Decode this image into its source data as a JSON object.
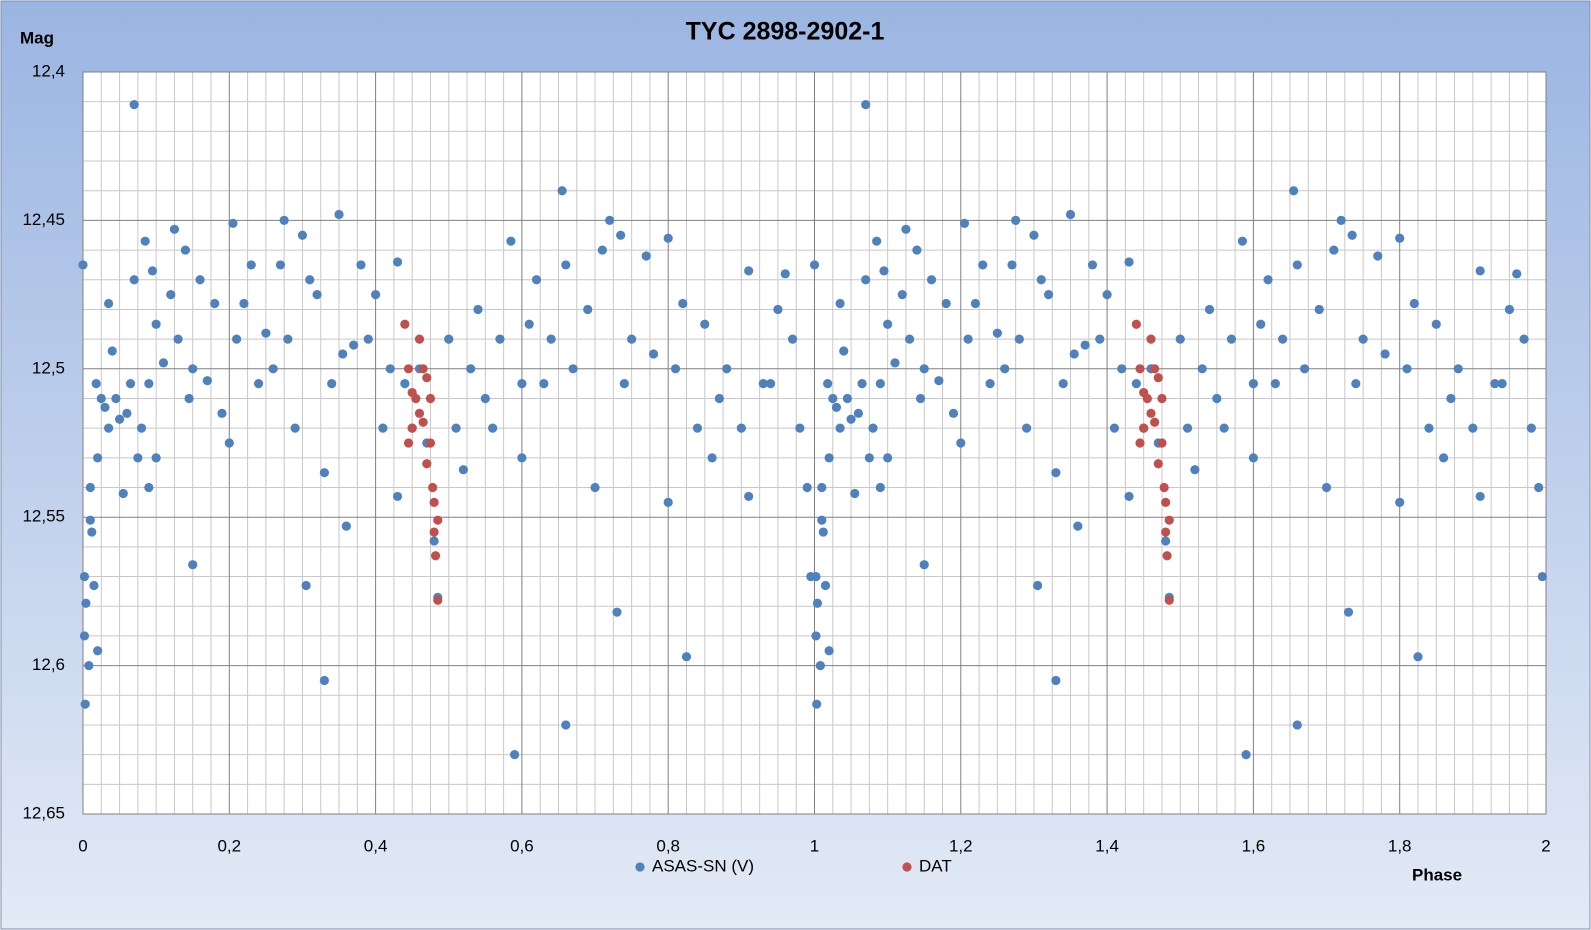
{
  "chart_data": {
    "type": "scatter",
    "title": "TYC 2898-2902-1",
    "y_label": "Mag",
    "x_label": "Phase",
    "xlim": [
      0,
      2
    ],
    "xticks": [
      0,
      {
        "value": 0.2,
        "label": "0,2"
      },
      {
        "value": 0.4,
        "label": "0,4"
      },
      {
        "value": 0.6,
        "label": "0,6"
      },
      {
        "value": 0.8,
        "label": "0,8"
      },
      1,
      {
        "value": 1.2,
        "label": "1,2"
      },
      {
        "value": 1.4,
        "label": "1,4"
      },
      {
        "value": 1.6,
        "label": "1,6"
      },
      {
        "value": 1.8,
        "label": "1,8"
      },
      2
    ],
    "ylim": [
      12.4,
      12.65
    ],
    "yticks": [
      {
        "value": 12.4,
        "label": "12,4"
      },
      {
        "value": 12.45,
        "label": "12,45"
      },
      {
        "value": 12.5,
        "label": "12,5"
      },
      {
        "value": 12.55,
        "label": "12,55"
      },
      {
        "value": 12.6,
        "label": "12,6"
      },
      {
        "value": 12.65,
        "label": "12,65"
      }
    ],
    "y_inverted": true,
    "grid": true,
    "legend": "bottom",
    "series": [
      {
        "name": "ASAS-SN (V)",
        "color": "#4f81bd",
        "x": [
          0.0,
          0.002,
          0.002,
          0.003,
          0.004,
          0.008,
          0.01,
          0.01,
          0.012,
          0.015,
          0.018,
          0.02,
          0.02,
          0.025,
          0.03,
          0.035,
          0.035,
          0.04,
          0.045,
          0.05,
          0.055,
          0.06,
          0.065,
          0.07,
          0.07,
          0.075,
          0.08,
          0.085,
          0.09,
          0.09,
          0.095,
          0.1,
          0.1,
          0.11,
          0.12,
          0.125,
          0.13,
          0.14,
          0.145,
          0.15,
          0.15,
          0.16,
          0.17,
          0.18,
          0.19,
          0.2,
          0.205,
          0.21,
          0.22,
          0.23,
          0.24,
          0.25,
          0.26,
          0.27,
          0.275,
          0.28,
          0.29,
          0.3,
          0.305,
          0.31,
          0.32,
          0.33,
          0.33,
          0.34,
          0.35,
          0.355,
          0.36,
          0.37,
          0.38,
          0.39,
          0.4,
          0.41,
          0.42,
          0.43,
          0.43,
          0.44,
          0.45,
          0.46,
          0.47,
          0.48,
          0.485,
          0.5,
          0.51,
          0.52,
          0.53,
          0.54,
          0.55,
          0.56,
          0.57,
          0.585,
          0.59,
          0.6,
          0.6,
          0.61,
          0.62,
          0.63,
          0.64,
          0.655,
          0.66,
          0.66,
          0.67,
          0.69,
          0.7,
          0.71,
          0.72,
          0.73,
          0.735,
          0.74,
          0.75,
          0.77,
          0.78,
          0.8,
          0.8,
          0.81,
          0.82,
          0.825,
          0.84,
          0.85,
          0.86,
          0.87,
          0.88,
          0.9,
          0.91,
          0.91,
          0.93,
          0.94,
          0.95,
          0.96,
          0.97,
          0.98,
          0.99,
          0.995,
          1.0,
          1.002,
          1.002,
          1.003,
          1.004,
          1.008,
          1.01,
          1.01,
          1.012,
          1.015,
          1.018,
          1.02,
          1.02,
          1.025,
          1.03,
          1.035,
          1.035,
          1.04,
          1.045,
          1.05,
          1.055,
          1.06,
          1.065,
          1.07,
          1.07,
          1.075,
          1.08,
          1.085,
          1.09,
          1.09,
          1.095,
          1.1,
          1.1,
          1.11,
          1.12,
          1.125,
          1.13,
          1.14,
          1.145,
          1.15,
          1.15,
          1.16,
          1.17,
          1.18,
          1.19,
          1.2,
          1.205,
          1.21,
          1.22,
          1.23,
          1.24,
          1.25,
          1.26,
          1.27,
          1.275,
          1.28,
          1.29,
          1.3,
          1.305,
          1.31,
          1.32,
          1.33,
          1.33,
          1.34,
          1.35,
          1.355,
          1.36,
          1.37,
          1.38,
          1.39,
          1.4,
          1.41,
          1.42,
          1.43,
          1.43,
          1.44,
          1.45,
          1.46,
          1.47,
          1.48,
          1.485,
          1.5,
          1.51,
          1.52,
          1.53,
          1.54,
          1.55,
          1.56,
          1.57,
          1.585,
          1.59,
          1.6,
          1.6,
          1.61,
          1.62,
          1.63,
          1.64,
          1.655,
          1.66,
          1.66,
          1.67,
          1.69,
          1.7,
          1.71,
          1.72,
          1.73,
          1.735,
          1.74,
          1.75,
          1.77,
          1.78,
          1.8,
          1.8,
          1.81,
          1.82,
          1.825,
          1.84,
          1.85,
          1.86,
          1.87,
          1.88,
          1.9,
          1.91,
          1.91,
          1.93,
          1.94,
          1.95,
          1.96,
          1.97,
          1.98,
          1.99,
          1.995
        ],
        "values": [
          12.465,
          12.57,
          12.59,
          12.613,
          12.579,
          12.6,
          12.54,
          12.551,
          12.555,
          12.573,
          12.505,
          12.595,
          12.53,
          12.51,
          12.513,
          12.478,
          12.52,
          12.494,
          12.51,
          12.517,
          12.542,
          12.515,
          12.505,
          12.411,
          12.47,
          12.53,
          12.52,
          12.457,
          12.505,
          12.54,
          12.467,
          12.485,
          12.53,
          12.498,
          12.475,
          12.453,
          12.49,
          12.46,
          12.51,
          12.566,
          12.5,
          12.47,
          12.504,
          12.478,
          12.515,
          12.525,
          12.451,
          12.49,
          12.478,
          12.465,
          12.505,
          12.488,
          12.5,
          12.465,
          12.45,
          12.49,
          12.52,
          12.455,
          12.573,
          12.47,
          12.475,
          12.605,
          12.535,
          12.505,
          12.448,
          12.495,
          12.553,
          12.492,
          12.465,
          12.49,
          12.475,
          12.52,
          12.5,
          12.464,
          12.543,
          12.505,
          12.52,
          12.5,
          12.525,
          12.558,
          12.577,
          12.49,
          12.52,
          12.534,
          12.5,
          12.48,
          12.51,
          12.52,
          12.49,
          12.457,
          12.63,
          12.53,
          12.505,
          12.485,
          12.47,
          12.505,
          12.49,
          12.44,
          12.62,
          12.465,
          12.5,
          12.48,
          12.54,
          12.46,
          12.45,
          12.582,
          12.455,
          12.505,
          12.49,
          12.462,
          12.495,
          12.545,
          12.456,
          12.5,
          12.478,
          12.597,
          12.52,
          12.485,
          12.53,
          12.51,
          12.5,
          12.52,
          12.467,
          12.543,
          12.505,
          12.505,
          12.48,
          12.468,
          12.49,
          12.52,
          12.54,
          12.57,
          12.465,
          12.57,
          12.59,
          12.613,
          12.579,
          12.6,
          12.54,
          12.551,
          12.555,
          12.573,
          12.505,
          12.595,
          12.53,
          12.51,
          12.513,
          12.478,
          12.52,
          12.494,
          12.51,
          12.517,
          12.542,
          12.515,
          12.505,
          12.411,
          12.47,
          12.53,
          12.52,
          12.457,
          12.505,
          12.54,
          12.467,
          12.485,
          12.53,
          12.498,
          12.475,
          12.453,
          12.49,
          12.46,
          12.51,
          12.566,
          12.5,
          12.47,
          12.504,
          12.478,
          12.515,
          12.525,
          12.451,
          12.49,
          12.478,
          12.465,
          12.505,
          12.488,
          12.5,
          12.465,
          12.45,
          12.49,
          12.52,
          12.455,
          12.573,
          12.47,
          12.475,
          12.605,
          12.535,
          12.505,
          12.448,
          12.495,
          12.553,
          12.492,
          12.465,
          12.49,
          12.475,
          12.52,
          12.5,
          12.464,
          12.543,
          12.505,
          12.52,
          12.5,
          12.525,
          12.558,
          12.577,
          12.49,
          12.52,
          12.534,
          12.5,
          12.48,
          12.51,
          12.52,
          12.49,
          12.457,
          12.63,
          12.53,
          12.505,
          12.485,
          12.47,
          12.505,
          12.49,
          12.44,
          12.62,
          12.465,
          12.5,
          12.48,
          12.54,
          12.46,
          12.45,
          12.582,
          12.455,
          12.505,
          12.49,
          12.462,
          12.495,
          12.545,
          12.456,
          12.5,
          12.478,
          12.597,
          12.52,
          12.485,
          12.53,
          12.51,
          12.5,
          12.52,
          12.467,
          12.543,
          12.505,
          12.505,
          12.48,
          12.468,
          12.49,
          12.52,
          12.54,
          12.57
        ]
      },
      {
        "name": "DAT",
        "color": "#c0504d",
        "x": [
          0.44,
          0.445,
          0.45,
          0.45,
          0.455,
          0.46,
          0.46,
          0.465,
          0.47,
          0.47,
          0.475,
          0.475,
          0.478,
          0.48,
          0.48,
          0.482,
          0.485,
          0.485,
          0.445,
          0.465,
          1.44,
          1.445,
          1.45,
          1.45,
          1.455,
          1.46,
          1.46,
          1.465,
          1.47,
          1.47,
          1.475,
          1.475,
          1.478,
          1.48,
          1.48,
          1.482,
          1.485,
          1.485,
          1.445,
          1.465
        ],
        "values": [
          12.485,
          12.5,
          12.508,
          12.52,
          12.51,
          12.49,
          12.515,
          12.5,
          12.503,
          12.532,
          12.51,
          12.525,
          12.54,
          12.545,
          12.555,
          12.563,
          12.551,
          12.578,
          12.525,
          12.518,
          12.485,
          12.5,
          12.508,
          12.52,
          12.51,
          12.49,
          12.515,
          12.5,
          12.503,
          12.532,
          12.51,
          12.525,
          12.54,
          12.545,
          12.555,
          12.563,
          12.551,
          12.578,
          12.525,
          12.518
        ]
      }
    ]
  }
}
